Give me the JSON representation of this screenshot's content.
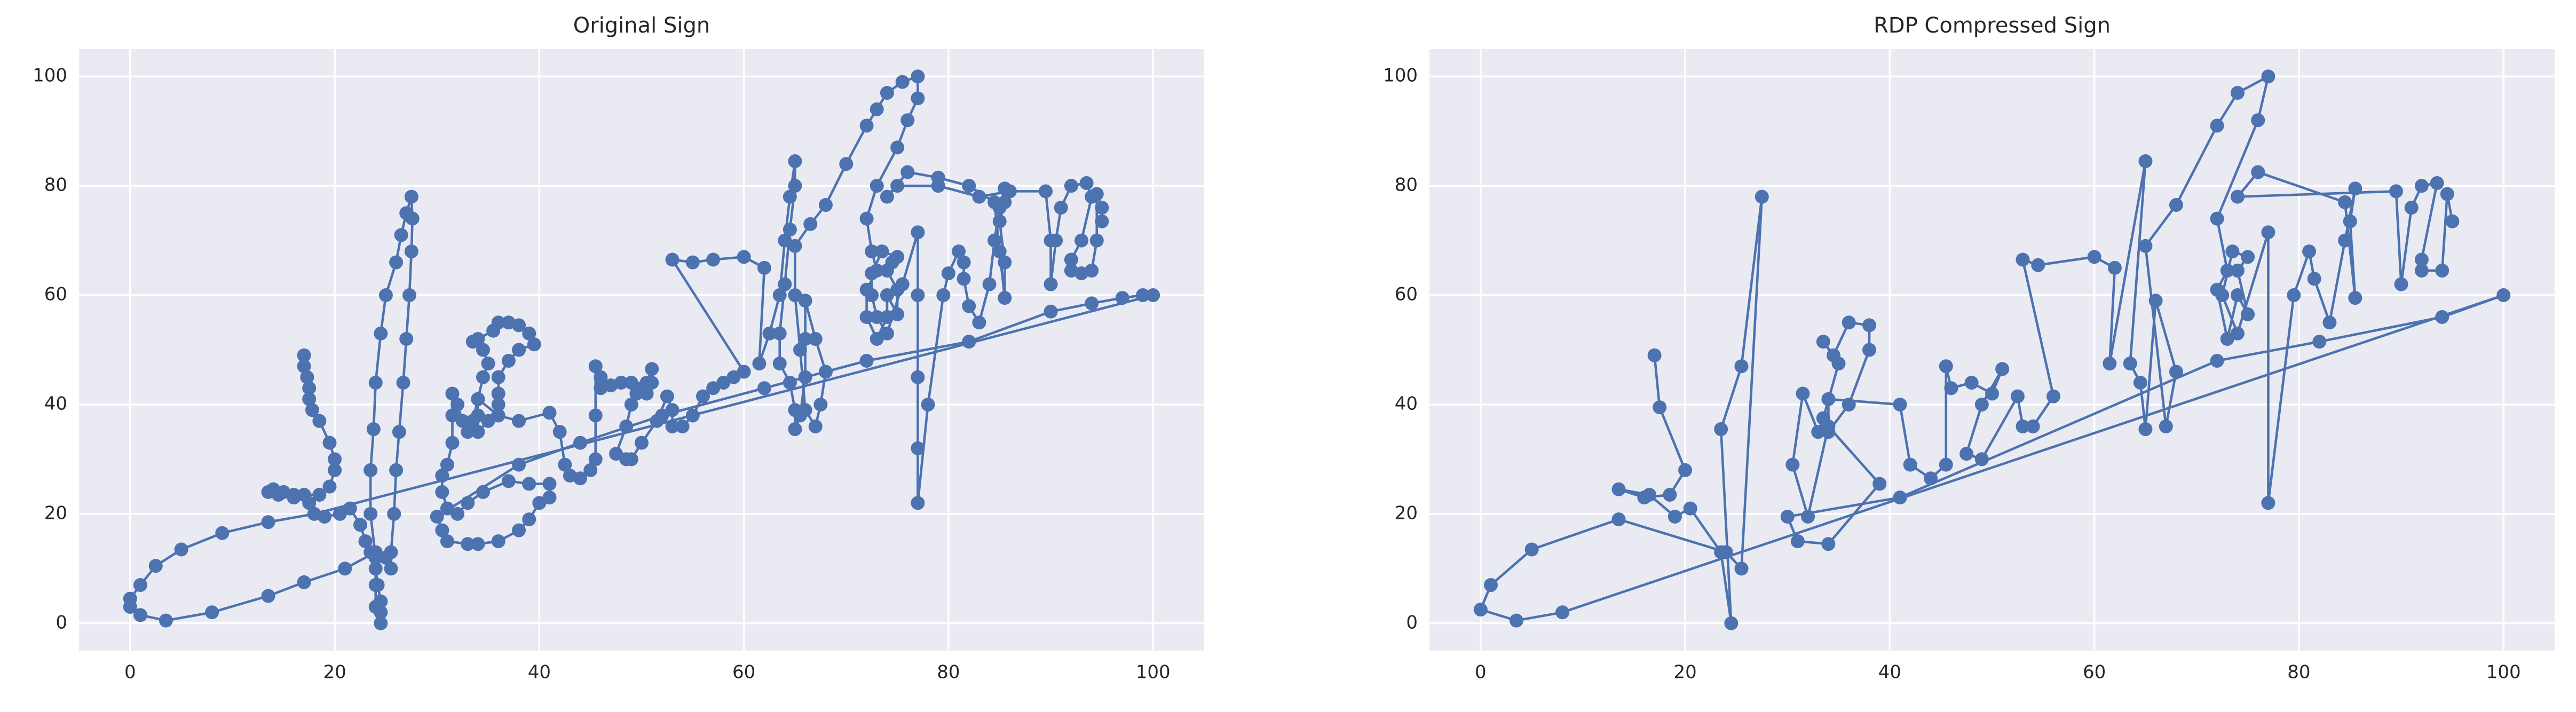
{
  "chart_data": [
    {
      "type": "line",
      "title": "Original Sign",
      "color": "#4c72b0",
      "grid": true,
      "xlim": [
        -5,
        105
      ],
      "ylim": [
        -5,
        105
      ],
      "xticks": [
        0,
        20,
        40,
        60,
        80,
        100
      ],
      "yticks": [
        0,
        20,
        40,
        60,
        80,
        100
      ],
      "x": [
        17,
        17,
        17.3,
        17.5,
        17.5,
        17.8,
        18.5,
        19.5,
        20,
        20,
        19.5,
        18.5,
        17,
        16,
        15,
        14,
        13.5,
        14.5,
        16,
        17.5,
        19,
        20.5,
        21.5,
        22.5,
        23,
        23.5,
        24,
        24.2,
        24.5,
        24.5,
        24.5,
        24,
        24,
        24,
        23.5,
        23.5,
        23.8,
        24,
        24.5,
        25,
        26,
        26.5,
        27,
        27.5,
        27.6,
        27.5,
        27.3,
        27,
        26.7,
        26.3,
        26,
        25.8,
        25.5,
        25.5,
        25,
        24,
        21,
        17,
        13.5,
        8,
        3.5,
        1,
        0,
        0,
        1,
        2.5,
        5,
        9,
        13.5,
        18,
        100,
        99,
        97,
        94,
        90,
        82,
        72,
        62,
        52,
        44,
        38,
        30,
        30.5,
        31,
        33,
        34,
        36,
        38,
        39,
        40,
        41,
        41,
        39,
        37,
        34.5,
        33,
        32,
        31,
        30.5,
        30.5,
        31,
        31.5,
        31.5,
        31.5,
        32,
        32.5,
        33,
        33.5,
        34,
        34.5,
        35,
        34.5,
        33.5,
        34,
        35.5,
        36,
        37,
        38,
        39,
        39.5,
        38,
        37,
        36,
        36,
        36,
        35,
        34,
        34,
        34,
        36,
        38,
        41,
        42,
        42.5,
        43,
        44,
        45,
        45.5,
        45.5,
        45.5,
        46,
        46,
        47,
        48,
        49,
        50,
        50.5,
        51,
        51,
        50.5,
        49.5,
        49,
        48.5,
        47.5,
        48.5,
        49,
        50,
        51.5,
        52.5,
        53,
        53,
        54,
        55,
        56,
        57,
        58,
        59,
        60,
        53,
        55,
        57,
        60,
        62,
        61.5,
        62.5,
        63.5,
        64,
        64.5,
        65,
        65,
        64.5,
        64,
        63.5,
        63.5,
        64.5,
        65,
        65,
        65.5,
        66,
        66,
        66,
        67,
        68,
        67.5,
        67,
        66,
        65.5,
        65,
        65,
        66.5,
        68,
        70,
        72,
        73,
        74,
        75.5,
        77,
        77,
        76,
        75,
        73,
        72,
        72.5,
        73,
        72,
        72,
        73,
        74,
        74,
        75,
        75,
        74,
        74.5,
        75,
        73.5,
        72.5,
        72.5,
        73,
        74,
        75.5,
        77,
        77,
        77,
        77,
        77,
        78,
        79.5,
        80,
        81,
        81.5,
        81.5,
        82,
        83,
        84,
        84.5,
        85,
        85.5,
        85.5,
        85,
        85.5,
        85.5,
        85,
        84.5,
        82,
        79,
        76,
        74,
        75,
        79,
        83,
        86,
        89.5,
        90,
        90,
        90.5,
        91,
        92,
        93.5,
        94,
        93,
        92,
        92,
        93,
        94,
        94.5,
        94.5,
        95,
        95
      ],
      "values": [
        49,
        47,
        45,
        43,
        41,
        39,
        37,
        33,
        30,
        28,
        25,
        23.5,
        23.5,
        23,
        24,
        24.5,
        24,
        23.5,
        23.5,
        22,
        19.5,
        20,
        21,
        18,
        15,
        13,
        10,
        7,
        4,
        2,
        0,
        3,
        7,
        12,
        20,
        28,
        35.5,
        44,
        53,
        60,
        66,
        71,
        75,
        78,
        74,
        68,
        60,
        52,
        44,
        35,
        28,
        20,
        13,
        10,
        12,
        13,
        10,
        7.5,
        5,
        2,
        0.5,
        1.5,
        3,
        4.5,
        7,
        10.5,
        13.5,
        16.5,
        18.5,
        20,
        60,
        60,
        59.5,
        58.5,
        57,
        51.5,
        48,
        43,
        38,
        33,
        29,
        19.5,
        17,
        15,
        14.5,
        14.5,
        15,
        17,
        19,
        22,
        23,
        25.5,
        25.5,
        26,
        24,
        22,
        20,
        21,
        24,
        27,
        29,
        33,
        38,
        42,
        40,
        37,
        35,
        37,
        41,
        45,
        47.5,
        50,
        51.5,
        52,
        53.5,
        55,
        55,
        54.5,
        53,
        51,
        50,
        48,
        45,
        42,
        40,
        37,
        35,
        38,
        41,
        38,
        37,
        38.5,
        35,
        29,
        27,
        26.5,
        28,
        30,
        38,
        47,
        45,
        43,
        43.5,
        44,
        44,
        43,
        42,
        44,
        46.5,
        44,
        42,
        40,
        36,
        31,
        30,
        30,
        33,
        37,
        41.5,
        39,
        36,
        36,
        38,
        41.5,
        43,
        44,
        45,
        46,
        66.5,
        66,
        66.5,
        67,
        65,
        47.5,
        53,
        60,
        70,
        78,
        84.5,
        80,
        72,
        62,
        53,
        47.5,
        44,
        39,
        35.5,
        38,
        45,
        52,
        59,
        52,
        46,
        40,
        36,
        39,
        50,
        60,
        69,
        73,
        76.5,
        84,
        91,
        94,
        97,
        99,
        100,
        96,
        92,
        87,
        80,
        74,
        68,
        64.5,
        61,
        56,
        52,
        56,
        60,
        56.5,
        61,
        64.5,
        66,
        67,
        68,
        64,
        60,
        56,
        53,
        62,
        71.5,
        60,
        45,
        32,
        22,
        40,
        60,
        64,
        68,
        66,
        63,
        58,
        55,
        62,
        70,
        76,
        79.5,
        77,
        73.5,
        66,
        59.5,
        68,
        77,
        80,
        81.5,
        82.5,
        78,
        80,
        80,
        78,
        79,
        79,
        70,
        62,
        70,
        76,
        80,
        80.5,
        78,
        70,
        66.5,
        64.5,
        64,
        64.5,
        70,
        78.5,
        76,
        73.5
      ]
    },
    {
      "type": "line",
      "title": "RDP Compressed Sign",
      "color": "#4c72b0",
      "grid": true,
      "xlim": [
        -5,
        105
      ],
      "ylim": [
        -5,
        105
      ],
      "xticks": [
        0,
        20,
        40,
        60,
        80,
        100
      ],
      "yticks": [
        0,
        20,
        40,
        60,
        80,
        100
      ],
      "x": [
        17,
        17.5,
        20,
        18.5,
        16,
        13.5,
        16.5,
        19,
        20.5,
        23.5,
        24.5,
        23.5,
        25.5,
        27.5,
        25.5,
        24,
        13.5,
        5,
        1,
        0,
        3.5,
        8,
        100,
        94,
        82,
        72,
        41,
        30,
        31,
        34,
        39,
        34,
        32,
        30.5,
        31.5,
        33,
        33.5,
        35,
        33.5,
        34.5,
        36,
        38,
        38,
        36,
        34,
        34,
        41,
        42,
        44,
        45.5,
        45.5,
        46,
        48,
        50,
        51,
        49,
        47.5,
        49,
        52.5,
        53,
        54,
        56,
        53,
        54.5,
        60,
        62,
        61.5,
        65,
        63.5,
        64.5,
        65,
        66,
        68,
        67,
        65,
        68,
        72,
        74,
        77,
        76,
        72,
        73,
        72,
        73,
        74,
        75,
        74,
        75,
        73.5,
        72.5,
        74,
        77,
        77,
        79.5,
        81,
        81.5,
        83,
        84.5,
        85.5,
        85,
        85.5,
        84.5,
        76,
        74,
        89.5,
        90,
        91,
        92,
        93.5,
        92,
        92,
        94,
        94.5,
        95
      ],
      "values": [
        49,
        39.5,
        28,
        23.5,
        23,
        24.5,
        23.5,
        19.5,
        21,
        13,
        0,
        35.5,
        47,
        78,
        10,
        13,
        19,
        13.5,
        7,
        2.5,
        0.5,
        2,
        60,
        56,
        51.5,
        48,
        23,
        19.5,
        15,
        14.5,
        25.5,
        36,
        19.5,
        29,
        42,
        35,
        37.5,
        47.5,
        51.5,
        49,
        55,
        54.5,
        50,
        40,
        35,
        41,
        40,
        29,
        26.5,
        29,
        47,
        43,
        44,
        42,
        46.5,
        40,
        31,
        30,
        41.5,
        36,
        36,
        41.5,
        66.5,
        65.5,
        67,
        65,
        47.5,
        84.5,
        47.5,
        44,
        35.5,
        59,
        46,
        36,
        69,
        76.5,
        91,
        97,
        100,
        92,
        74,
        64.5,
        61,
        52,
        60,
        56.5,
        64.5,
        67,
        68,
        60,
        53,
        71.5,
        22,
        60,
        68,
        63,
        55,
        70,
        79.5,
        73.5,
        59.5,
        77,
        82.5,
        78,
        79,
        62,
        76,
        80,
        80.5,
        66.5,
        64.5,
        64.5,
        78.5,
        73.5
      ]
    }
  ]
}
